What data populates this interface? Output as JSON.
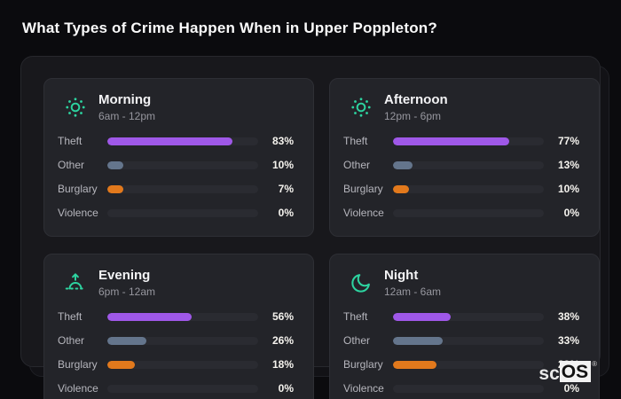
{
  "page": {
    "title": "What Types of Crime Happen When in Upper Poppleton?"
  },
  "colors": {
    "accent": "#2dd4a0",
    "theft": "#9f58e8",
    "other": "#64758c",
    "burglary": "#e2791c",
    "violence": "#2a2b31",
    "track": "#2a2b31"
  },
  "chart_data": {
    "type": "bar",
    "title": "What Types of Crime Happen When in Upper Poppleton?",
    "value_format": "percent",
    "xlim": [
      0,
      100
    ],
    "categories": [
      "Theft",
      "Other",
      "Burglary",
      "Violence"
    ],
    "series": [
      {
        "name": "Morning",
        "time_range": "6am - 12pm",
        "icon": "sun-icon",
        "values": [
          83,
          10,
          7,
          0
        ]
      },
      {
        "name": "Afternoon",
        "time_range": "12pm - 6pm",
        "icon": "sun-icon",
        "values": [
          77,
          13,
          10,
          0
        ]
      },
      {
        "name": "Evening",
        "time_range": "6pm - 12am",
        "icon": "sunrise-icon",
        "values": [
          56,
          26,
          18,
          0
        ]
      },
      {
        "name": "Night",
        "time_range": "12am - 6am",
        "icon": "moon-icon",
        "values": [
          38,
          33,
          29,
          0
        ]
      }
    ]
  },
  "watermark": {
    "prefix": "sc",
    "suffix": "OS",
    "reg": "®"
  }
}
